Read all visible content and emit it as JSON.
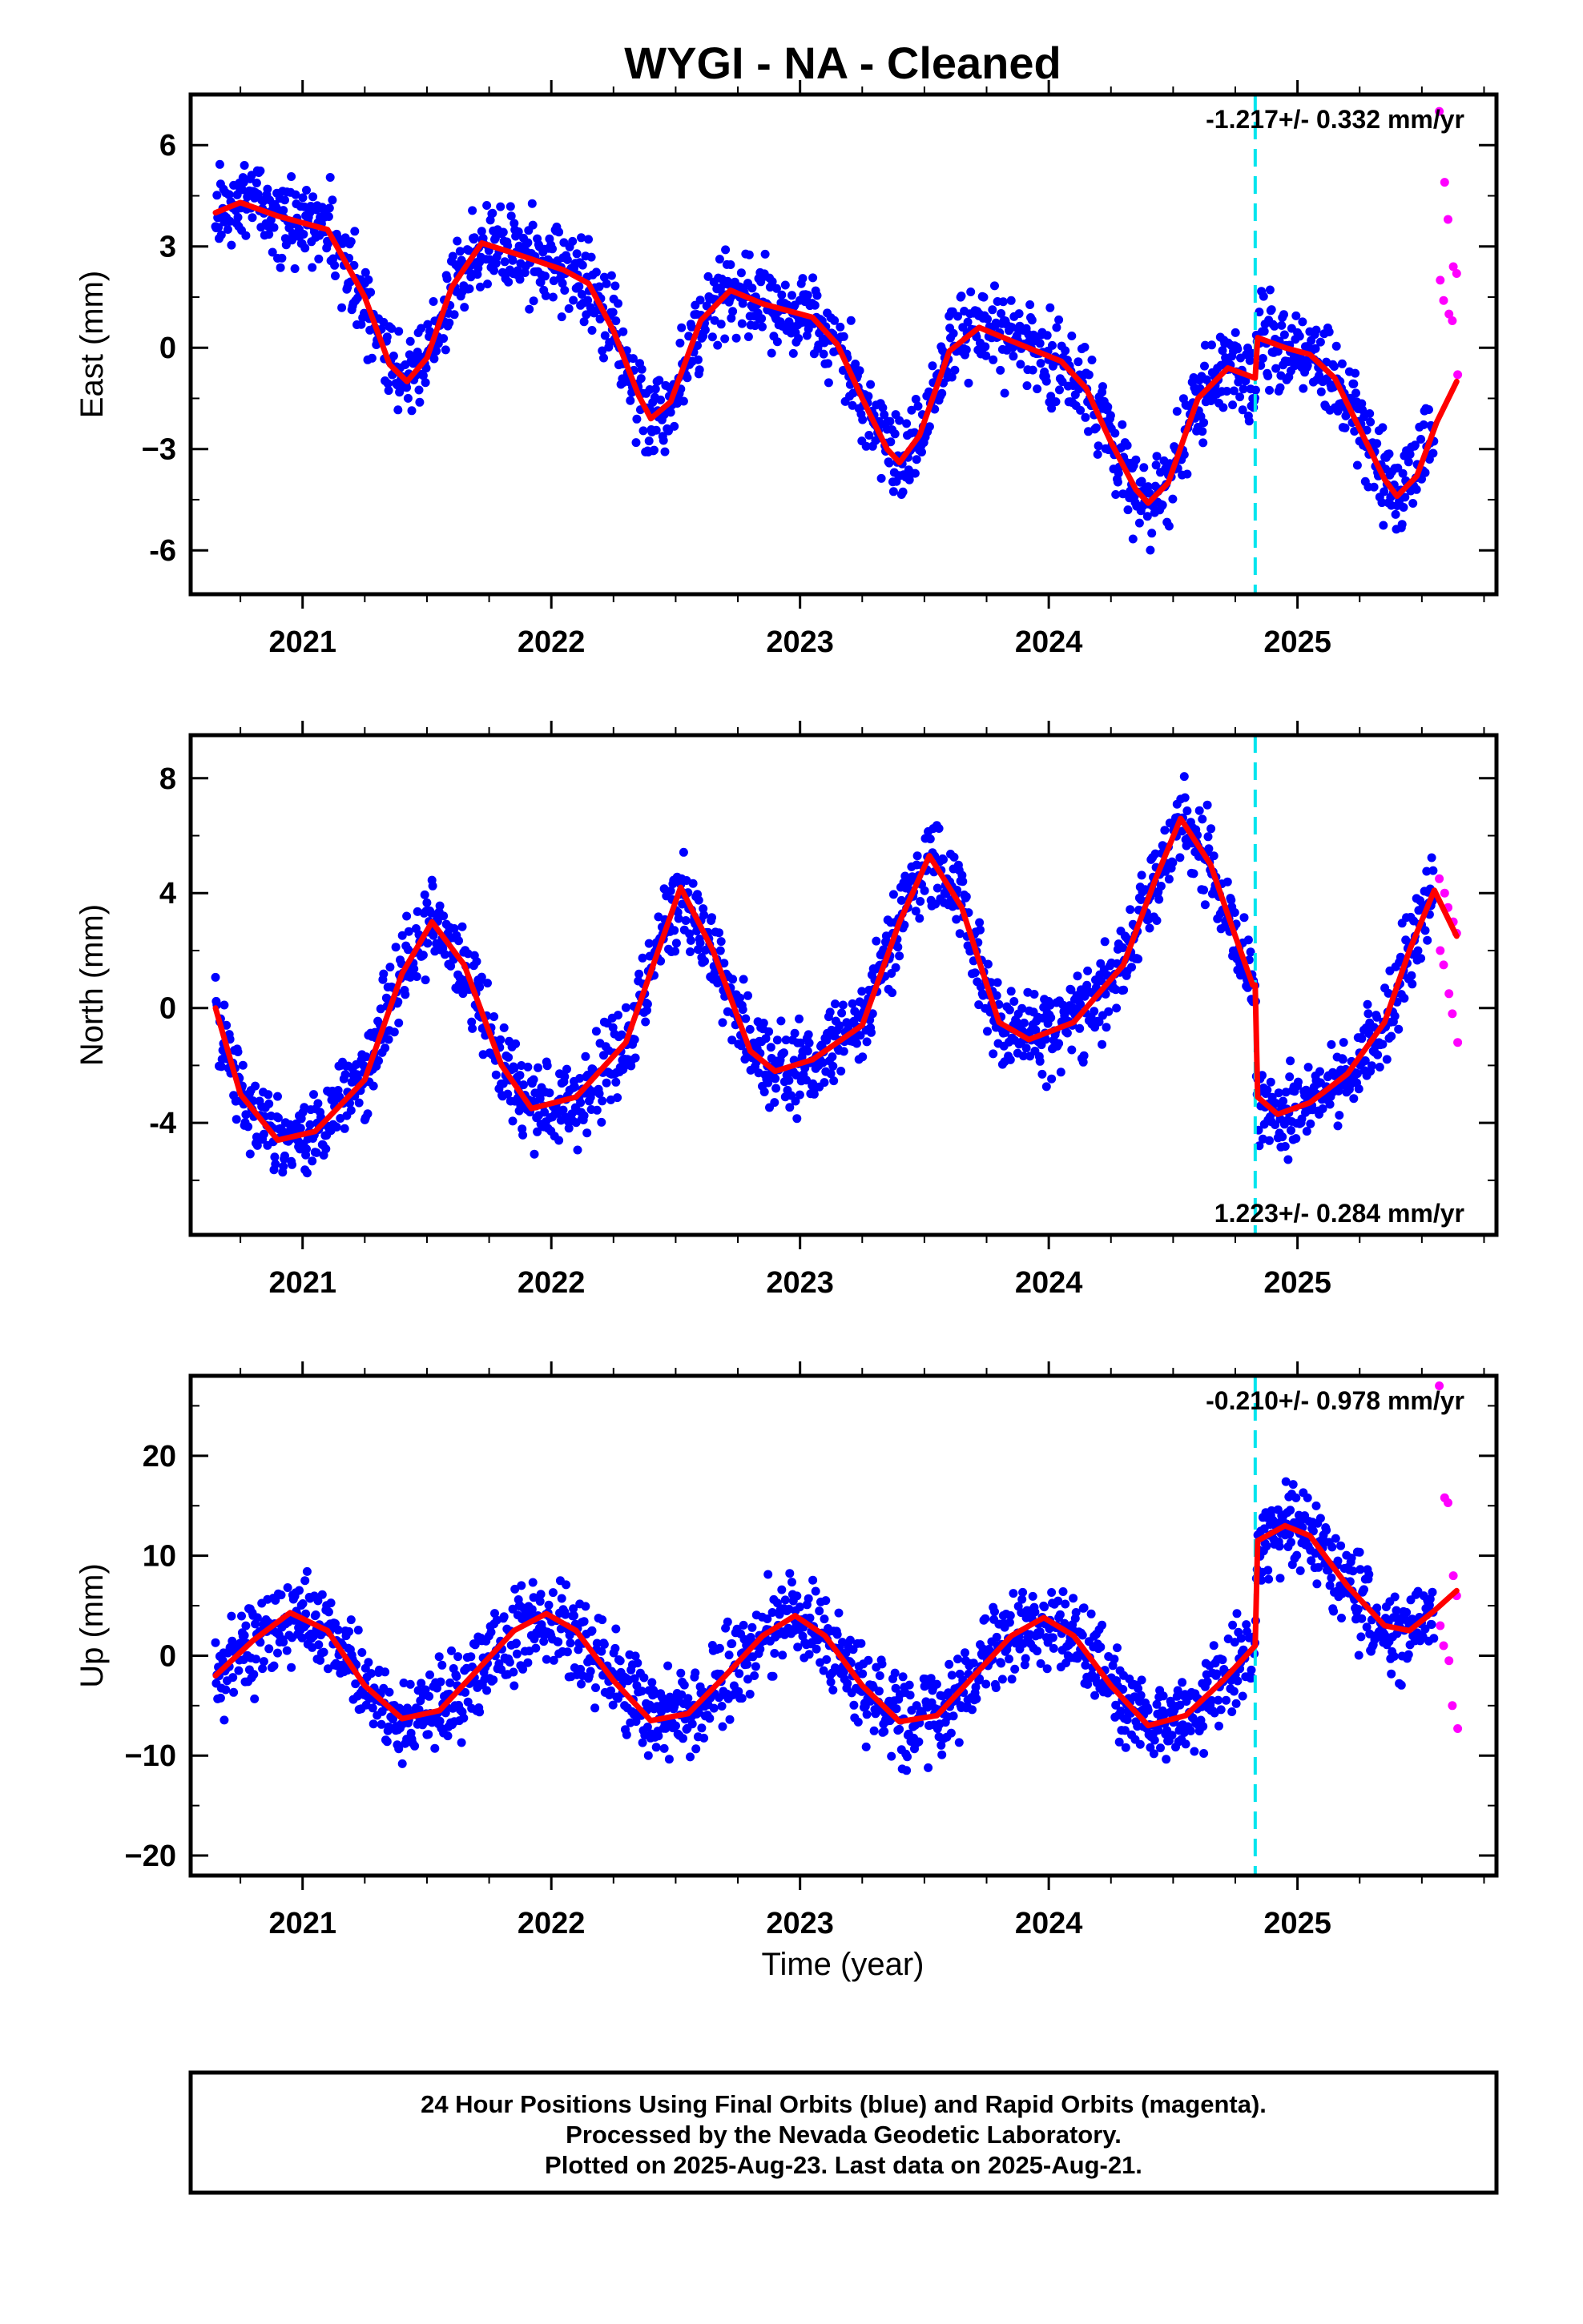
{
  "title": "WYGI  - NA - Cleaned",
  "xlabel": "Time (year)",
  "footer": {
    "line1": "24 Hour Positions Using Final Orbits (blue) and Rapid Orbits (magenta).",
    "line2": "Processed by the Nevada Geodetic Laboratory.",
    "line3": "Plotted on 2025-Aug-23. Last data on 2025-Aug-21."
  },
  "colors": {
    "final_points": "#0000ff",
    "rapid_points": "#ff00ff",
    "model_line": "#ff0000",
    "equipment_change": "#00e5ee"
  },
  "chart_data": [
    {
      "type": "scatter",
      "component": "east",
      "ylabel": "East (mm)",
      "rate_text": "-1.217+/- 0.332 mm/yr",
      "rate_position": "top-right",
      "xlim": [
        2020.55,
        2025.8
      ],
      "ylim": [
        -7.3,
        7.5
      ],
      "yticks": [
        -6,
        -3,
        0,
        3,
        6
      ],
      "ytick_labels": [
        "-6",
        "−3",
        "0",
        "3",
        "6"
      ],
      "xticks": [
        2021,
        2022,
        2023,
        2024,
        2025
      ],
      "xtick_labels": [
        "2021",
        "2022",
        "2023",
        "2024",
        "2025"
      ],
      "grid": false,
      "data_start": 2020.65,
      "final_end": 2025.55,
      "rapid_start": 2025.57,
      "data_end": 2025.64,
      "offset_epoch": 2024.83,
      "rapid_values": [
        7.0,
        4.9,
        3.8,
        2.4,
        2.2,
        2.0,
        1.4,
        1.0,
        0.8,
        -0.8
      ],
      "model_x": [
        2020.65,
        2020.75,
        2020.9,
        2021.1,
        2021.25,
        2021.35,
        2021.42,
        2021.5,
        2021.6,
        2021.72,
        2021.85,
        2022.05,
        2022.15,
        2022.25,
        2022.35,
        2022.4,
        2022.48,
        2022.6,
        2022.72,
        2022.85,
        2023.05,
        2023.15,
        2023.25,
        2023.35,
        2023.4,
        2023.48,
        2023.6,
        2023.72,
        2023.85,
        2024.05,
        2024.15,
        2024.25,
        2024.35,
        2024.4,
        2024.48,
        2024.6,
        2024.72,
        2024.83,
        2024.84,
        2024.95,
        2025.05,
        2025.15,
        2025.25,
        2025.35,
        2025.4,
        2025.48,
        2025.56,
        2025.64
      ],
      "model_y": [
        4.0,
        4.3,
        3.9,
        3.5,
        1.5,
        -0.5,
        -1.0,
        -0.3,
        1.8,
        3.1,
        2.8,
        2.3,
        1.9,
        0.5,
        -1.4,
        -2.1,
        -1.6,
        0.8,
        1.7,
        1.3,
        0.9,
        0.1,
        -1.5,
        -3.0,
        -3.4,
        -2.6,
        -0.1,
        0.6,
        0.2,
        -0.4,
        -1.2,
        -2.8,
        -4.2,
        -4.6,
        -4.0,
        -1.5,
        -0.6,
        -0.9,
        0.3,
        0.0,
        -0.2,
        -0.9,
        -2.4,
        -3.9,
        -4.4,
        -3.8,
        -2.2,
        -1.0
      ]
    },
    {
      "type": "scatter",
      "component": "north",
      "ylabel": "North (mm)",
      "rate_text": "1.223+/- 0.284 mm/yr",
      "rate_position": "bottom-right",
      "xlim": [
        2020.55,
        2025.8
      ],
      "ylim": [
        -7.9,
        9.5
      ],
      "yticks": [
        -4,
        0,
        4,
        8
      ],
      "ytick_labels": [
        "-4",
        "0",
        "4",
        "8"
      ],
      "xticks": [
        2021,
        2022,
        2023,
        2024,
        2025
      ],
      "xtick_labels": [
        "2021",
        "2022",
        "2023",
        "2024",
        "2025"
      ],
      "grid": false,
      "data_start": 2020.65,
      "final_end": 2025.55,
      "rapid_start": 2025.57,
      "data_end": 2025.64,
      "offset_epoch": 2024.83,
      "rapid_values": [
        4.5,
        4.0,
        3.5,
        3.0,
        2.6,
        2.0,
        1.5,
        0.5,
        -0.2,
        -1.2
      ],
      "model_x": [
        2020.65,
        2020.75,
        2020.9,
        2021.05,
        2021.25,
        2021.4,
        2021.52,
        2021.65,
        2021.8,
        2021.92,
        2022.1,
        2022.3,
        2022.43,
        2022.52,
        2022.65,
        2022.8,
        2022.9,
        2023.05,
        2023.25,
        2023.4,
        2023.52,
        2023.65,
        2023.8,
        2023.92,
        2024.1,
        2024.3,
        2024.43,
        2024.53,
        2024.65,
        2024.75,
        2024.82,
        2024.83,
        2024.84,
        2024.92,
        2025.05,
        2025.2,
        2025.35,
        2025.45,
        2025.55,
        2025.64
      ],
      "model_y": [
        0.0,
        -3.0,
        -4.6,
        -4.3,
        -2.5,
        1.2,
        3.0,
        1.5,
        -2.0,
        -3.5,
        -3.1,
        -1.2,
        2.0,
        4.2,
        2.0,
        -1.5,
        -2.2,
        -1.8,
        -0.6,
        3.0,
        5.3,
        3.5,
        -0.5,
        -1.1,
        -0.5,
        1.5,
        4.5,
        6.6,
        5.0,
        2.5,
        0.8,
        0.8,
        -3.1,
        -3.7,
        -3.3,
        -2.3,
        -0.5,
        2.0,
        4.1,
        2.5
      ]
    },
    {
      "type": "scatter",
      "component": "up",
      "ylabel": "Up (mm)",
      "rate_text": "-0.210+/- 0.978 mm/yr",
      "rate_position": "top-right",
      "xlim": [
        2020.55,
        2025.8
      ],
      "ylim": [
        -22,
        28
      ],
      "yticks": [
        -20,
        -10,
        0,
        10,
        20
      ],
      "ytick_labels": [
        "−20",
        "−10",
        "0",
        "10",
        "20"
      ],
      "xticks": [
        2021,
        2022,
        2023,
        2024,
        2025
      ],
      "xtick_labels": [
        "2021",
        "2022",
        "2023",
        "2024",
        "2025"
      ],
      "grid": false,
      "data_start": 2020.65,
      "final_end": 2025.55,
      "rapid_start": 2025.57,
      "data_end": 2025.64,
      "offset_epoch": 2024.83,
      "rapid_values": [
        27.0,
        15.8,
        15.3,
        8.0,
        6.0,
        3.0,
        1.0,
        -0.5,
        -5.0,
        -7.3
      ],
      "model_x": [
        2020.65,
        2020.8,
        2020.95,
        2021.1,
        2021.25,
        2021.4,
        2021.55,
        2021.7,
        2021.85,
        2021.98,
        2022.1,
        2022.25,
        2022.4,
        2022.55,
        2022.7,
        2022.85,
        2022.98,
        2023.1,
        2023.25,
        2023.4,
        2023.55,
        2023.7,
        2023.85,
        2023.98,
        2024.1,
        2024.25,
        2024.4,
        2024.55,
        2024.7,
        2024.83,
        2024.84,
        2024.95,
        2025.05,
        2025.2,
        2025.35,
        2025.45,
        2025.55,
        2025.64
      ],
      "model_y": [
        -2.0,
        1.5,
        4.3,
        2.5,
        -3.0,
        -6.3,
        -5.5,
        -1.5,
        2.5,
        4.2,
        2.5,
        -2.5,
        -6.5,
        -5.8,
        -2.0,
        2.0,
        4.0,
        2.0,
        -3.0,
        -6.6,
        -6.0,
        -2.0,
        2.0,
        3.8,
        2.0,
        -3.0,
        -7.0,
        -6.0,
        -2.5,
        1.0,
        11.5,
        13.0,
        12.0,
        7.0,
        3.0,
        2.5,
        4.5,
        6.5
      ]
    }
  ]
}
